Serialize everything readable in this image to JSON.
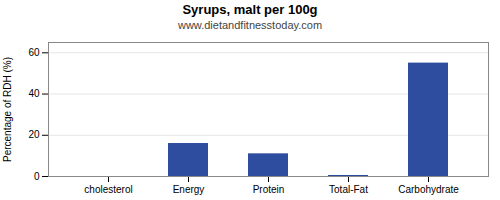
{
  "chart_data": {
    "type": "bar",
    "title": "Syrups, malt per 100g",
    "subtitle": "www.dietandfitnesstoday.com",
    "categories": [
      "cholesterol",
      "Energy",
      "Protein",
      "Total-Fat",
      "Carbohydrate"
    ],
    "values": [
      0,
      16,
      11,
      0.5,
      55
    ],
    "color": "#2e4d9e",
    "ylabel": "Percentage of RDH (%)",
    "ylim": [
      0,
      65
    ],
    "yticks": [
      0,
      20,
      40,
      60
    ],
    "grid": true
  }
}
